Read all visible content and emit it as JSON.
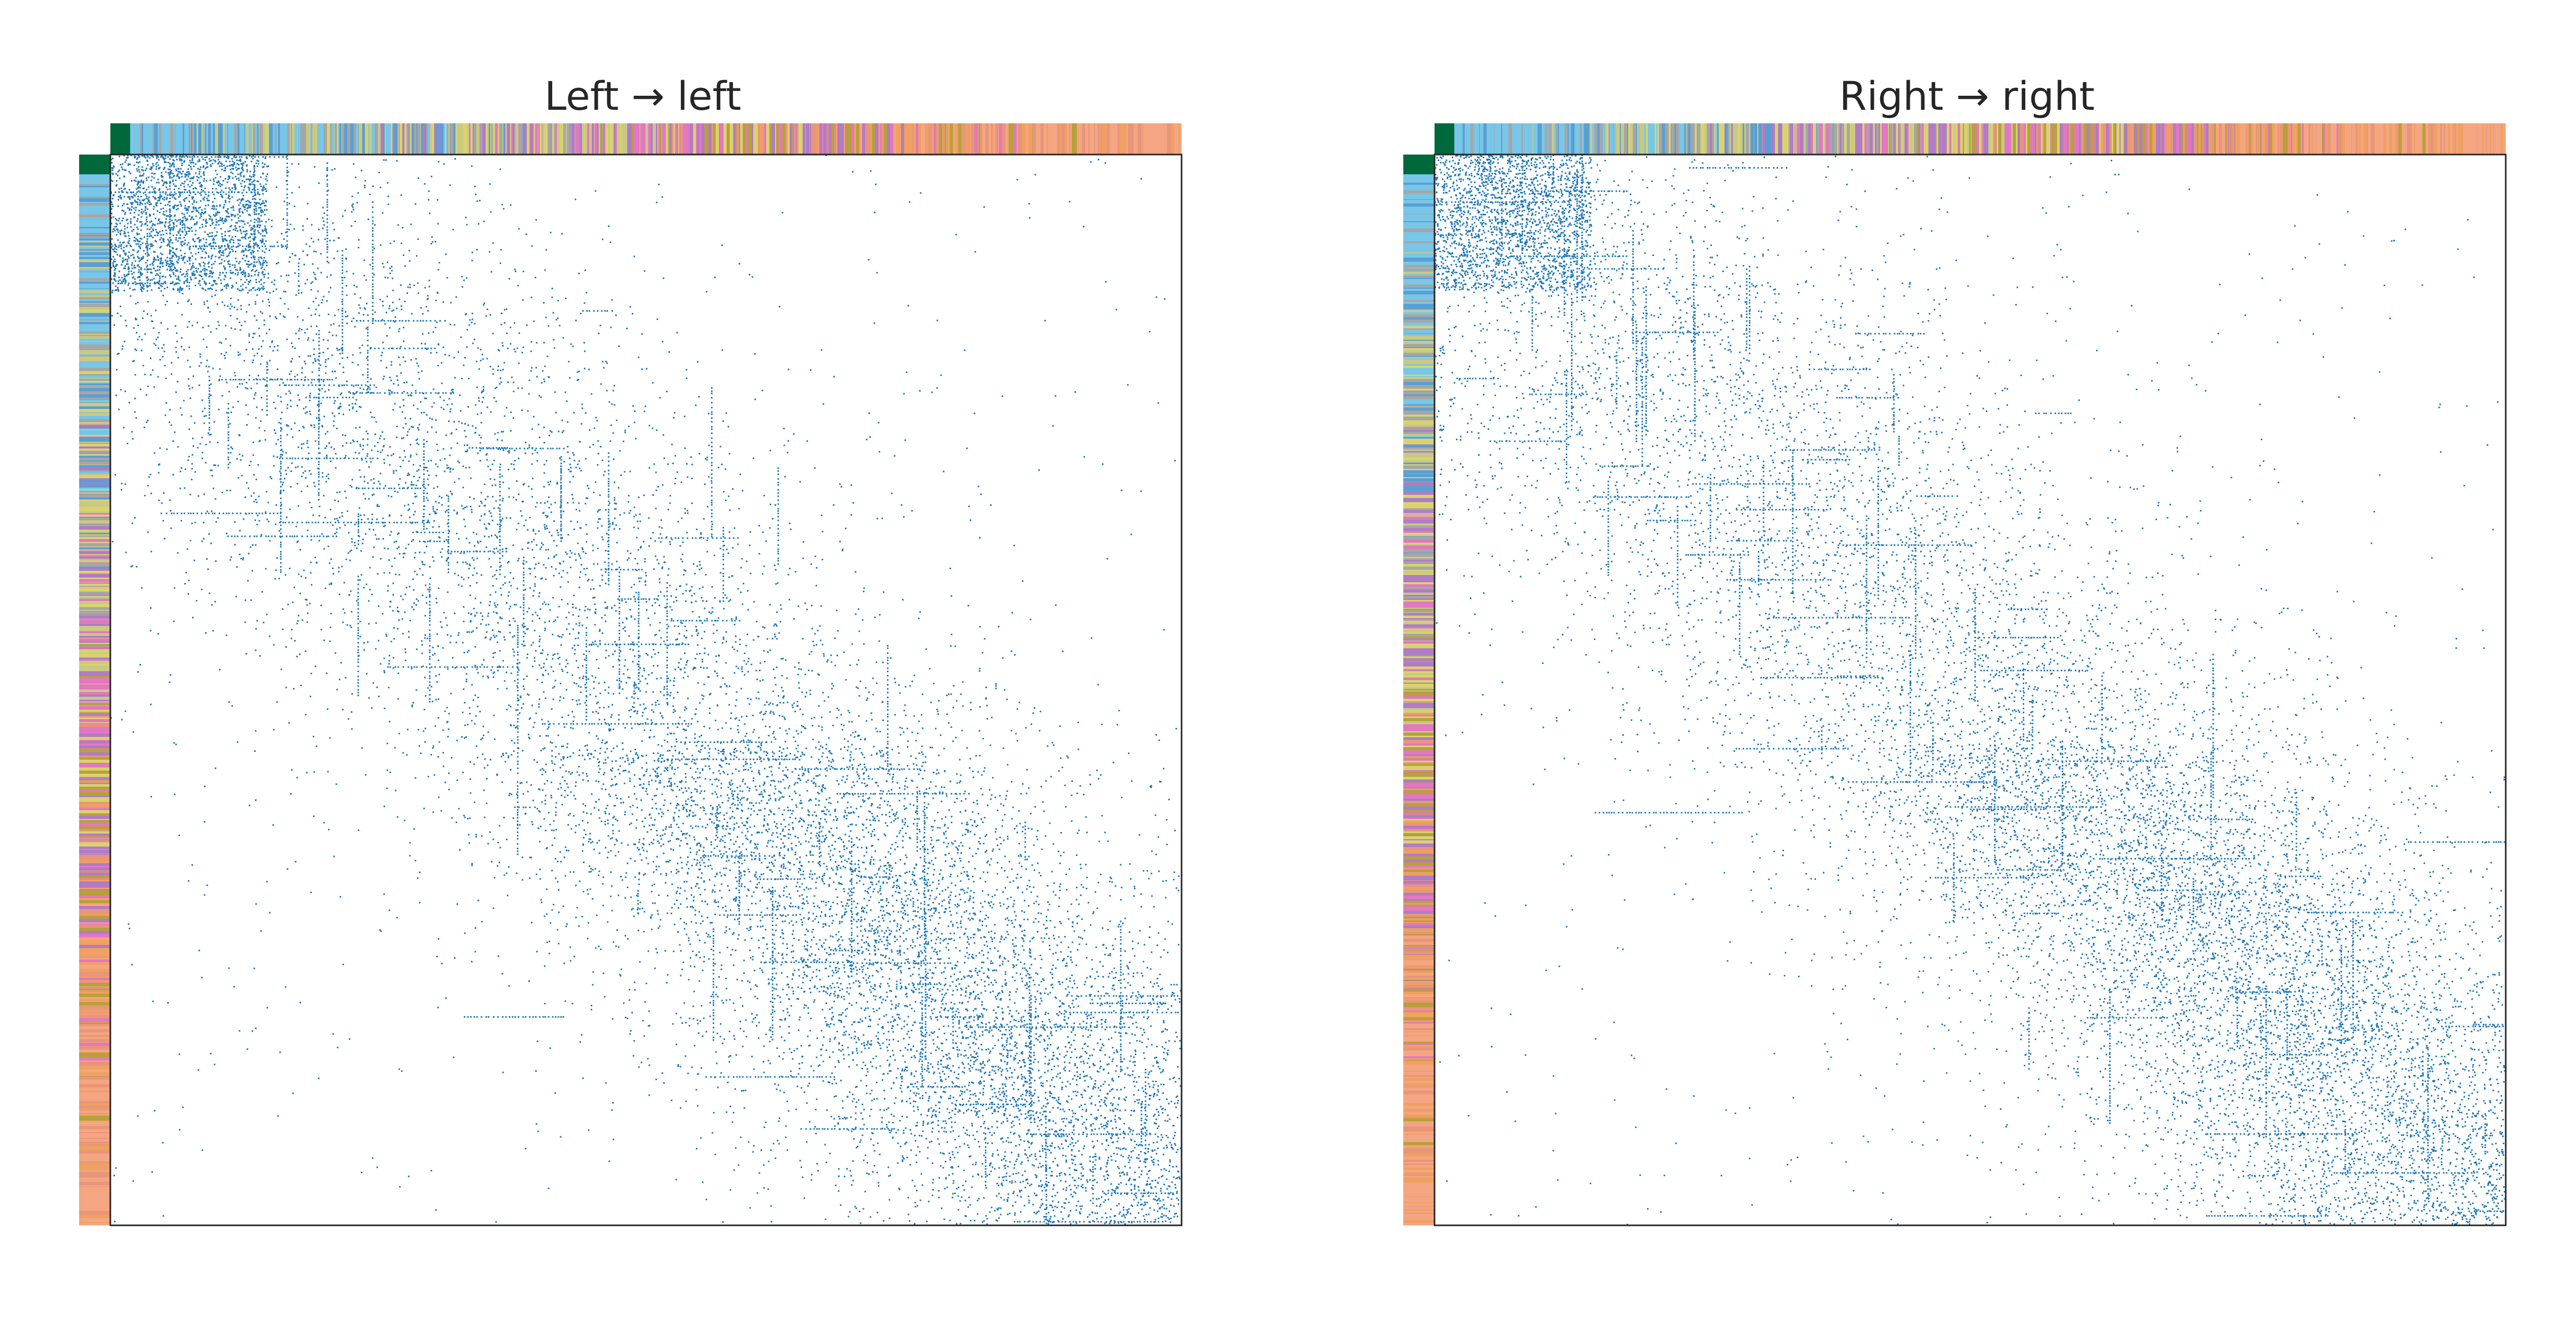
{
  "chart_data": [
    {
      "type": "heatmap",
      "title": "Left → left",
      "xlabel": "",
      "ylabel": "",
      "grid": false,
      "matrix_style": "binary adjacency spy plot",
      "ordering": "nodes sorted by group; colored group bars along top and left edges",
      "point_color": "#1f77b4",
      "density_pattern": "dense block at top-left, diffuse band along the diagonal, denser clustering toward bottom-right",
      "group_colors": [
        "#00693c",
        "#78c6e8",
        "#5a9fd4",
        "#a6a6a6",
        "#c9c983",
        "#d9d36e",
        "#b07cc6",
        "#e377c2",
        "#b8a13a",
        "#e8967a",
        "#f0a060",
        "#f4a582"
      ]
    },
    {
      "type": "heatmap",
      "title": "Right → right",
      "xlabel": "",
      "ylabel": "",
      "grid": false,
      "matrix_style": "binary adjacency spy plot",
      "ordering": "nodes sorted by group; colored group bars along top and left edges",
      "point_color": "#1f77b4",
      "density_pattern": "dense block at top-left, diffuse band along the diagonal, denser clustering toward bottom-right",
      "group_colors": [
        "#00693c",
        "#78c6e8",
        "#5a9fd4",
        "#a6a6a6",
        "#c9c983",
        "#d9d36e",
        "#b07cc6",
        "#e377c2",
        "#b8a13a",
        "#e8967a",
        "#f0a060",
        "#f4a582"
      ]
    }
  ]
}
